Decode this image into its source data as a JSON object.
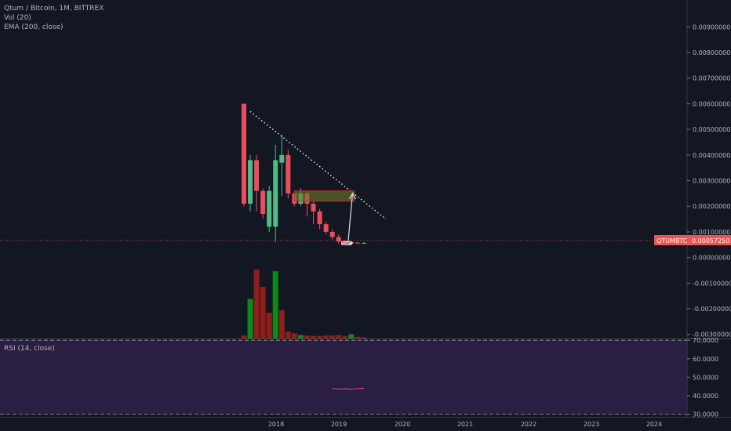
{
  "legend": {
    "symbol_line": "Qtum / Bitcoin, 1M, BITTREX",
    "volume_line": "Vol (20)",
    "ema_line": "EMA (200, close)",
    "rsi_line": "RSI (14, close)"
  },
  "price_tag": {
    "symbol": "QTUMBTC",
    "value": "0.00057250",
    "color": "#ef5350"
  },
  "colors": {
    "up": "#53b987",
    "down": "#eb4d5c",
    "vol_up": "#0d8a17",
    "vol_down": "#8e1e1c",
    "rsi_bg": "#2a1e42",
    "background": "#131722"
  },
  "chart_data": {
    "type": "candlestick",
    "price_axis": {
      "ticks": [
        "0.00900000",
        "0.00800000",
        "0.00700000",
        "0.00600000",
        "0.00500000",
        "0.00400000",
        "0.00300000",
        "0.00200000",
        "0.00100000",
        "0.00000000",
        "-0.00100000",
        "-0.00200000",
        "-0.00300000"
      ],
      "range": [
        -0.0031,
        0.0095
      ]
    },
    "time_axis": {
      "ticks": [
        "2018",
        "2019",
        "2020",
        "2021",
        "2022",
        "2023",
        "2024"
      ]
    },
    "rsi_axis": {
      "ticks": [
        "70.0000",
        "60.0000",
        "50.0000",
        "40.0000",
        "30.0000"
      ],
      "range": [
        29,
        70.5
      ],
      "bands": [
        70,
        30
      ]
    },
    "candles": [
      {
        "t": 0,
        "o": 0.006,
        "h": 0.006,
        "l": 0.002,
        "c": 0.0021
      },
      {
        "t": 1,
        "o": 0.0021,
        "h": 0.004,
        "l": 0.0018,
        "c": 0.0038
      },
      {
        "t": 2,
        "o": 0.0038,
        "h": 0.004,
        "l": 0.0018,
        "c": 0.0026
      },
      {
        "t": 3,
        "o": 0.0026,
        "h": 0.0027,
        "l": 0.0015,
        "c": 0.0017
      },
      {
        "t": 4,
        "o": 0.0012,
        "h": 0.0028,
        "l": 0.001,
        "c": 0.0026
      },
      {
        "t": 5,
        "o": 0.0012,
        "h": 0.0044,
        "l": 0.0006,
        "c": 0.0038
      },
      {
        "t": 6,
        "o": 0.0037,
        "h": 0.0048,
        "l": 0.0024,
        "c": 0.004
      },
      {
        "t": 7,
        "o": 0.004,
        "h": 0.0042,
        "l": 0.0023,
        "c": 0.0025
      },
      {
        "t": 8,
        "o": 0.0025,
        "h": 0.0026,
        "l": 0.002,
        "c": 0.0021
      },
      {
        "t": 9,
        "o": 0.0021,
        "h": 0.0027,
        "l": 0.002,
        "c": 0.0025
      },
      {
        "t": 10,
        "o": 0.0025,
        "h": 0.0026,
        "l": 0.0016,
        "c": 0.0021
      },
      {
        "t": 11,
        "o": 0.0021,
        "h": 0.0022,
        "l": 0.0013,
        "c": 0.0018
      },
      {
        "t": 12,
        "o": 0.0018,
        "h": 0.0019,
        "l": 0.0011,
        "c": 0.0013
      },
      {
        "t": 13,
        "o": 0.0013,
        "h": 0.0014,
        "l": 0.0009,
        "c": 0.001
      },
      {
        "t": 14,
        "o": 0.001,
        "h": 0.0011,
        "l": 0.0007,
        "c": 0.0008
      },
      {
        "t": 15,
        "o": 0.0008,
        "h": 0.0009,
        "l": 0.00055,
        "c": 0.00062
      },
      {
        "t": 16,
        "o": 0.00062,
        "h": 0.00068,
        "l": 0.00052,
        "c": 0.00057
      },
      {
        "t": 17,
        "o": 0.00057,
        "h": 0.00062,
        "l": 0.00052,
        "c": 0.00058
      },
      {
        "t": 18,
        "o": 0.00058,
        "h": 0.00061,
        "l": 0.00054,
        "c": 0.00056
      },
      {
        "t": 19,
        "o": 0.00056,
        "h": 0.0006,
        "l": 0.00053,
        "c": 0.0005725
      }
    ],
    "volume": [
      {
        "t": 0,
        "v": 0.035,
        "up": false
      },
      {
        "t": 1,
        "v": 0.46,
        "up": true
      },
      {
        "t": 2,
        "v": 0.8,
        "up": false
      },
      {
        "t": 3,
        "v": 0.6,
        "up": false
      },
      {
        "t": 4,
        "v": 0.3,
        "up": false
      },
      {
        "t": 5,
        "v": 0.78,
        "up": true
      },
      {
        "t": 6,
        "v": 0.33,
        "up": false
      },
      {
        "t": 7,
        "v": 0.08,
        "up": false
      },
      {
        "t": 8,
        "v": 0.06,
        "up": false
      },
      {
        "t": 9,
        "v": 0.04,
        "up": true
      },
      {
        "t": 10,
        "v": 0.035,
        "up": false
      },
      {
        "t": 11,
        "v": 0.03,
        "up": false
      },
      {
        "t": 12,
        "v": 0.03,
        "up": false
      },
      {
        "t": 13,
        "v": 0.035,
        "up": false
      },
      {
        "t": 14,
        "v": 0.035,
        "up": false
      },
      {
        "t": 15,
        "v": 0.04,
        "up": false
      },
      {
        "t": 16,
        "v": 0.03,
        "up": false
      },
      {
        "t": 17,
        "v": 0.05,
        "up": true
      },
      {
        "t": 18,
        "v": 0.02,
        "up": false
      },
      {
        "t": 19,
        "v": 0.015,
        "up": false
      }
    ],
    "rsi": [
      {
        "t": 14,
        "v": 44.0
      },
      {
        "t": 15,
        "v": 43.6
      },
      {
        "t": 16,
        "v": 43.8
      },
      {
        "t": 17,
        "v": 43.5
      },
      {
        "t": 18,
        "v": 43.9
      },
      {
        "t": 19,
        "v": 44.1
      }
    ],
    "annotations": {
      "trendline": {
        "from": {
          "t": 1,
          "price": 0.0057
        },
        "to": {
          "t": 22.5,
          "price": 0.0015
        }
      },
      "zone": {
        "t_start": 8,
        "t_end": 17.5,
        "top": 0.0026,
        "bottom": 0.0022
      },
      "arrow": {
        "from": {
          "t": 16.5,
          "price": 0.0006
        },
        "to": {
          "t": 17.2,
          "price": 0.0025
        }
      },
      "base_box": {
        "t_start": 15.5,
        "t_end": 17,
        "top": 0.00062,
        "bottom": 0.0005
      }
    }
  }
}
